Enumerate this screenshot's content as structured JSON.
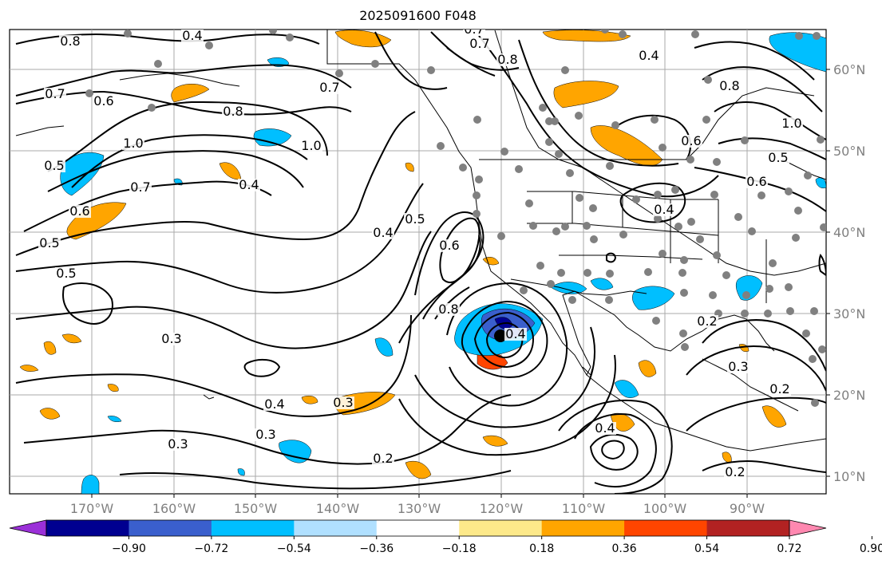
{
  "title": "2025091600 F048",
  "lon_labels": [
    "170°W",
    "160°W",
    "150°W",
    "140°W",
    "130°W",
    "120°W",
    "110°W",
    "100°W",
    "90°W"
  ],
  "lat_labels": [
    "60°N",
    "50°N",
    "40°N",
    "30°N",
    "20°N",
    "10°N"
  ],
  "colorbar": {
    "ticks": [
      "−0.90",
      "−0.72",
      "−0.54",
      "−0.36",
      "−0.18",
      "0.18",
      "0.36",
      "0.54",
      "0.72",
      "0.90"
    ],
    "colors": [
      "#9b30d8",
      "#000090",
      "#3a5fcd",
      "#00bfff",
      "#b0e0ff",
      "#ffffff",
      "#fde98a",
      "#ffa500",
      "#ff4500",
      "#b22222",
      "#ff88b0"
    ]
  },
  "contour_labels": [
    {
      "text": "0.8"
    },
    {
      "text": "0.4"
    },
    {
      "text": "0.7"
    },
    {
      "text": "0.6"
    },
    {
      "text": "0.8"
    },
    {
      "text": "1.0"
    },
    {
      "text": "0.5"
    },
    {
      "text": "0.7"
    },
    {
      "text": "0.6"
    },
    {
      "text": "0.5"
    },
    {
      "text": "0.4"
    },
    {
      "text": "0.5"
    },
    {
      "text": "0.3"
    },
    {
      "text": "0.4"
    },
    {
      "text": "0.3"
    },
    {
      "text": "0.3"
    },
    {
      "text": "0.3"
    },
    {
      "text": "0.4"
    },
    {
      "text": "0.5"
    },
    {
      "text": "0.6"
    },
    {
      "text": "0.7"
    },
    {
      "text": "0.8"
    },
    {
      "text": "0.2"
    },
    {
      "text": "0.2"
    },
    {
      "text": "0.3"
    },
    {
      "text": "0.2"
    },
    {
      "text": "0.2"
    },
    {
      "text": "0.4"
    },
    {
      "text": "0.4"
    },
    {
      "text": "0.6"
    },
    {
      "text": "0.8"
    },
    {
      "text": "1.0"
    },
    {
      "text": "0.8"
    },
    {
      "text": "0.7"
    },
    {
      "text": "0.4"
    },
    {
      "text": "0.6"
    },
    {
      "text": "0.5"
    },
    {
      "text": "0.4"
    },
    {
      "text": "1.0"
    },
    {
      "text": "0.7"
    }
  ]
}
